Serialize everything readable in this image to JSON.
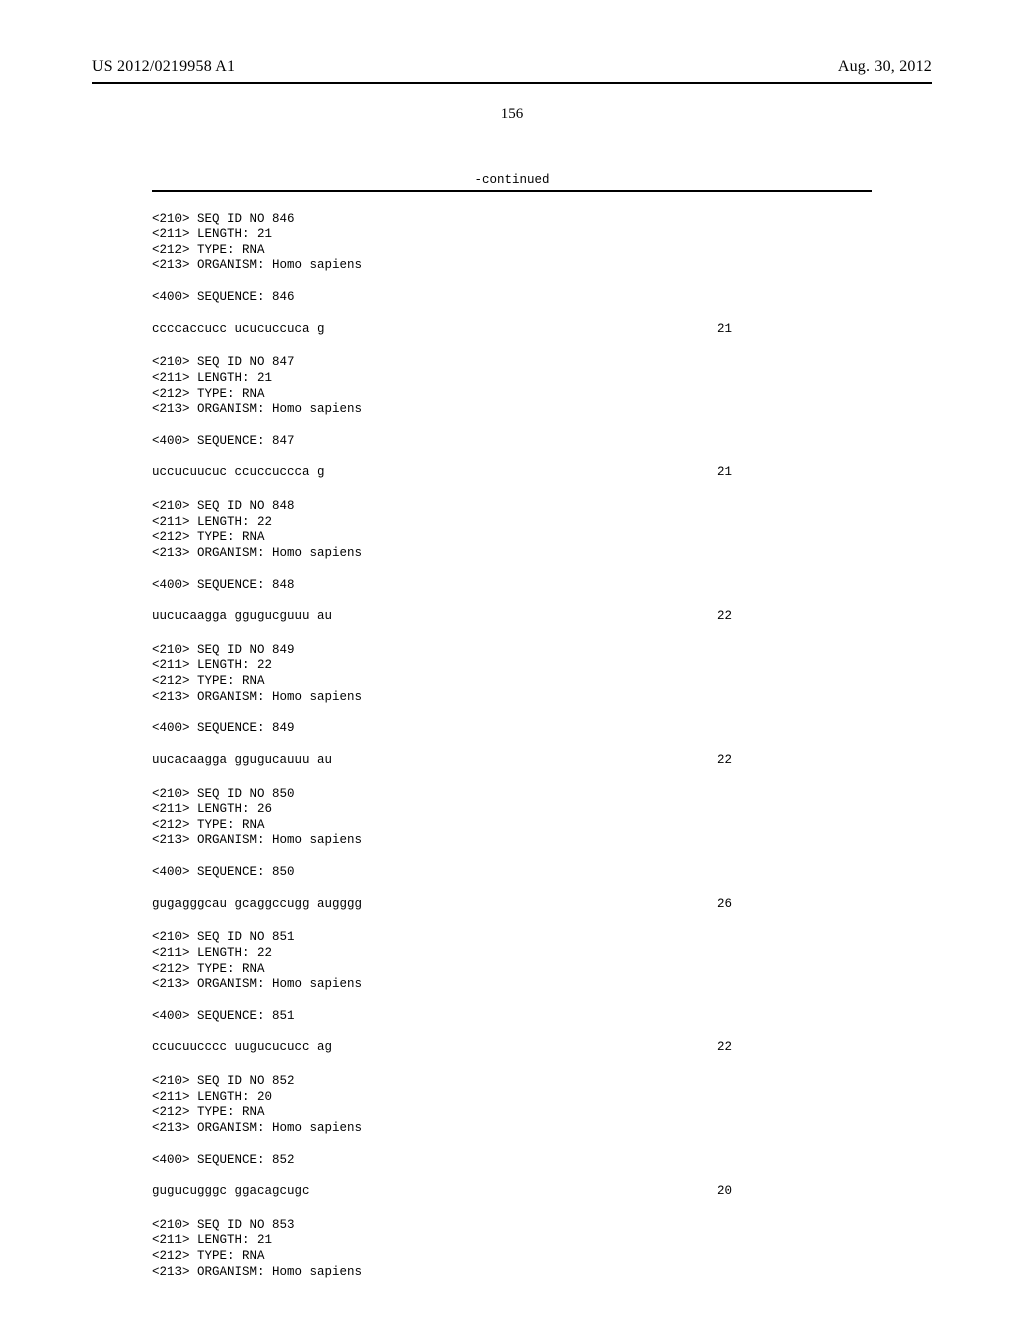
{
  "header": {
    "pub_number": "US 2012/0219958 A1",
    "pub_date": "Aug. 30, 2012"
  },
  "page_number": "156",
  "continued_label": "-continued",
  "sequences": [
    {
      "seq_id": "<210> SEQ ID NO 846",
      "length": "<211> LENGTH: 21",
      "type": "<212> TYPE: RNA",
      "organism": "<213> ORGANISM: Homo sapiens",
      "seq_header": "<400> SEQUENCE: 846",
      "seq_text": "ccccaccucc ucucuccuca g",
      "seq_len": "21"
    },
    {
      "seq_id": "<210> SEQ ID NO 847",
      "length": "<211> LENGTH: 21",
      "type": "<212> TYPE: RNA",
      "organism": "<213> ORGANISM: Homo sapiens",
      "seq_header": "<400> SEQUENCE: 847",
      "seq_text": "uccucuucuc ccuccuccca g",
      "seq_len": "21"
    },
    {
      "seq_id": "<210> SEQ ID NO 848",
      "length": "<211> LENGTH: 22",
      "type": "<212> TYPE: RNA",
      "organism": "<213> ORGANISM: Homo sapiens",
      "seq_header": "<400> SEQUENCE: 848",
      "seq_text": "uucucaagga ggugucguuu au",
      "seq_len": "22"
    },
    {
      "seq_id": "<210> SEQ ID NO 849",
      "length": "<211> LENGTH: 22",
      "type": "<212> TYPE: RNA",
      "organism": "<213> ORGANISM: Homo sapiens",
      "seq_header": "<400> SEQUENCE: 849",
      "seq_text": "uucacaagga ggugucauuu au",
      "seq_len": "22"
    },
    {
      "seq_id": "<210> SEQ ID NO 850",
      "length": "<211> LENGTH: 26",
      "type": "<212> TYPE: RNA",
      "organism": "<213> ORGANISM: Homo sapiens",
      "seq_header": "<400> SEQUENCE: 850",
      "seq_text": "gugagggcau gcaggccugg augggg",
      "seq_len": "26"
    },
    {
      "seq_id": "<210> SEQ ID NO 851",
      "length": "<211> LENGTH: 22",
      "type": "<212> TYPE: RNA",
      "organism": "<213> ORGANISM: Homo sapiens",
      "seq_header": "<400> SEQUENCE: 851",
      "seq_text": "ccucuucccc uugucucucc ag",
      "seq_len": "22"
    },
    {
      "seq_id": "<210> SEQ ID NO 852",
      "length": "<211> LENGTH: 20",
      "type": "<212> TYPE: RNA",
      "organism": "<213> ORGANISM: Homo sapiens",
      "seq_header": "<400> SEQUENCE: 852",
      "seq_text": "gugucugggc ggacagcugc",
      "seq_len": "20"
    },
    {
      "seq_id": "<210> SEQ ID NO 853",
      "length": "<211> LENGTH: 21",
      "type": "<212> TYPE: RNA",
      "organism": "<213> ORGANISM: Homo sapiens",
      "seq_header": "",
      "seq_text": "",
      "seq_len": ""
    }
  ]
}
